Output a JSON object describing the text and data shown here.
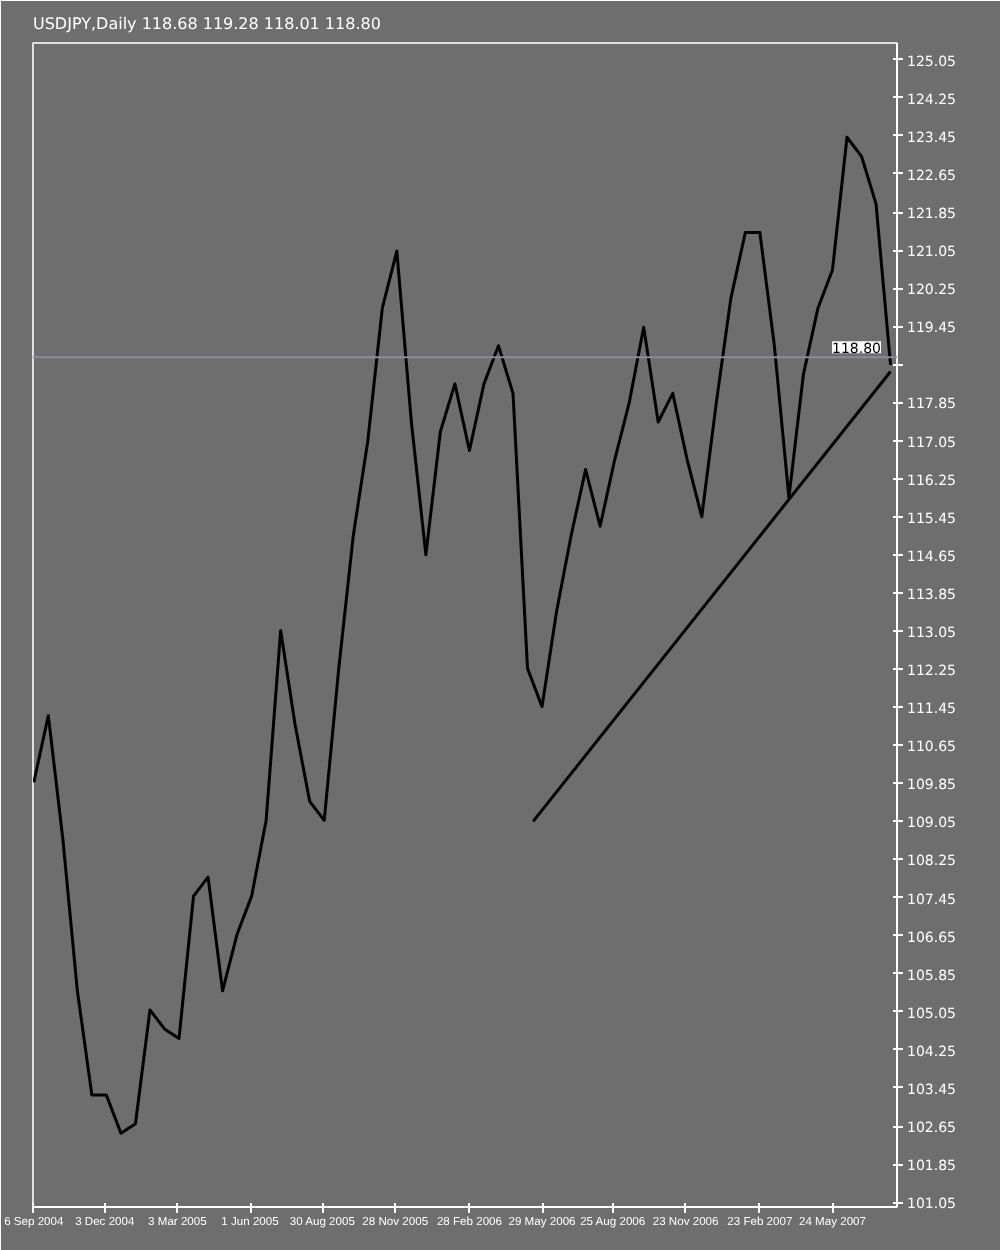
{
  "chart_data": {
    "type": "line",
    "title": "USDJPY,Daily  118.68 119.28 118.01 118.80",
    "x": [
      "2004-09-06",
      "2004-09-24",
      "2004-10-12",
      "2004-10-30",
      "2004-11-17",
      "2004-12-05",
      "2004-12-23",
      "2005-01-10",
      "2005-01-28",
      "2005-02-15",
      "2005-03-05",
      "2005-03-23",
      "2005-04-10",
      "2005-04-28",
      "2005-05-16",
      "2005-06-03",
      "2005-06-21",
      "2005-07-09",
      "2005-07-27",
      "2005-08-14",
      "2005-09-01",
      "2005-09-19",
      "2005-10-07",
      "2005-10-25",
      "2005-11-12",
      "2005-11-30",
      "2005-12-18",
      "2006-01-05",
      "2006-01-23",
      "2006-02-10",
      "2006-02-28",
      "2006-03-18",
      "2006-04-05",
      "2006-04-23",
      "2006-05-11",
      "2006-05-29",
      "2006-06-16",
      "2006-07-04",
      "2006-07-22",
      "2006-08-09",
      "2006-08-27",
      "2006-09-14",
      "2006-10-02",
      "2006-10-20",
      "2006-11-07",
      "2006-11-25",
      "2006-12-13",
      "2006-12-31",
      "2007-01-18",
      "2007-02-05",
      "2007-02-23",
      "2007-03-13",
      "2007-03-31",
      "2007-04-18",
      "2007-05-06",
      "2007-05-24",
      "2007-06-11",
      "2007-06-29",
      "2007-07-17",
      "2007-08-04"
    ],
    "series": [
      {
        "color": "#000000",
        "values": [
          109.87,
          111.27,
          108.68,
          105.49,
          103.3,
          103.3,
          102.5,
          102.7,
          105.09,
          104.69,
          104.49,
          107.48,
          107.88,
          105.49,
          106.68,
          107.48,
          109.07,
          113.06,
          111.07,
          109.47,
          109.07,
          112.26,
          115.05,
          117.04,
          119.83,
          121.03,
          117.44,
          114.65,
          117.24,
          118.24,
          116.84,
          118.24,
          119.04,
          118.04,
          112.26,
          111.46,
          113.46,
          115.05,
          116.44,
          115.25,
          116.64,
          117.84,
          119.43,
          117.44,
          118.04,
          116.64,
          115.45,
          117.84,
          120.03,
          121.42,
          121.42,
          119.04,
          115.85,
          118.44,
          119.83,
          120.63,
          123.42,
          123.02,
          122.02,
          118.64
        ]
      },
      {
        "type": "line",
        "color": "#000000",
        "x": [
          "2006-05-18",
          "2007-08-04"
        ],
        "values": [
          109.05,
          118.5
        ]
      }
    ],
    "xlim": [
      "2004-09-05",
      "2007-08-12"
    ],
    "xticks": [
      {
        "value": "2004-09-06",
        "label": "6 Sep 2004"
      },
      {
        "value": "2004-12-03",
        "label": "3 Dec 2004"
      },
      {
        "value": "2005-03-03",
        "label": "3 Mar 2005"
      },
      {
        "value": "2005-06-01",
        "label": "1 Jun 2005"
      },
      {
        "value": "2005-08-30",
        "label": "30 Aug 2005"
      },
      {
        "value": "2005-11-28",
        "label": "28 Nov 2005"
      },
      {
        "value": "2006-02-28",
        "label": "28 Feb 2006"
      },
      {
        "value": "2006-05-29",
        "label": "29 May 2006"
      },
      {
        "value": "2006-08-25",
        "label": "25 Aug 2006"
      },
      {
        "value": "2006-11-23",
        "label": "23 Nov 2006"
      },
      {
        "value": "2007-02-23",
        "label": "23 Feb 2007"
      },
      {
        "value": "2007-05-24",
        "label": "24 May 2007"
      }
    ],
    "ylim": [
      100.95,
      125.4
    ],
    "yticks": [
      101.05,
      101.85,
      102.65,
      103.45,
      104.25,
      105.05,
      105.85,
      106.65,
      107.45,
      108.25,
      109.05,
      109.85,
      110.65,
      111.45,
      112.25,
      113.05,
      113.85,
      114.65,
      115.45,
      116.25,
      117.05,
      117.85,
      {
        "value": 118.65,
        "label": null
      },
      119.45,
      120.25,
      121.05,
      121.85,
      122.65,
      123.45,
      124.25,
      125.05
    ],
    "ref_lines": [
      {
        "axis": "y",
        "value": 118.8,
        "label": "118.80",
        "color": "#8a8aa8"
      }
    ],
    "grid": false,
    "marker": "none",
    "line_style": "solid"
  }
}
